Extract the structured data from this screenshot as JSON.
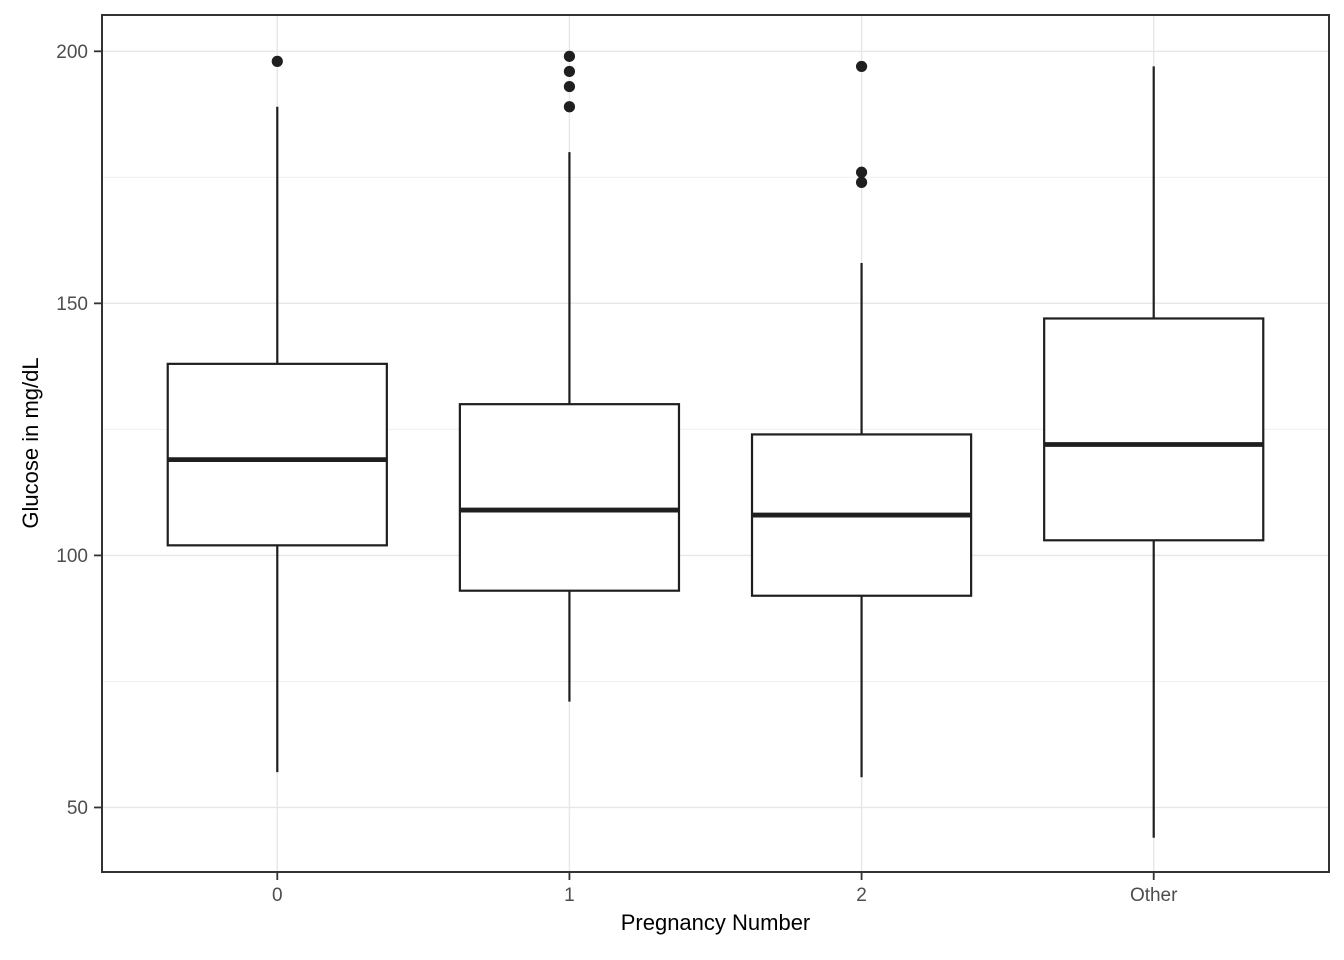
{
  "chart_data": {
    "type": "boxplot",
    "title": "",
    "xlabel": "Pregnancy Number",
    "ylabel": "Glucose in mg/dL",
    "categories": [
      "0",
      "1",
      "2",
      "Other"
    ],
    "series": [
      {
        "category": "0",
        "whisker_low": 57,
        "q1": 102,
        "median": 119,
        "q3": 138,
        "whisker_high": 189,
        "outliers": [
          198
        ]
      },
      {
        "category": "1",
        "whisker_low": 71,
        "q1": 93,
        "median": 109,
        "q3": 130,
        "whisker_high": 180,
        "outliers": [
          189,
          193,
          196,
          199
        ]
      },
      {
        "category": "2",
        "whisker_low": 56,
        "q1": 92,
        "median": 108,
        "q3": 124,
        "whisker_high": 158,
        "outliers": [
          174,
          176,
          197
        ]
      },
      {
        "category": "Other",
        "whisker_low": 44,
        "q1": 103,
        "median": 122,
        "q3": 147,
        "whisker_high": 197,
        "outliers": []
      }
    ],
    "y_axis": {
      "ticks": [
        50,
        100,
        150,
        200
      ],
      "minor_ticks": [
        75,
        125,
        175
      ],
      "ylim": [
        37.2,
        207.2
      ]
    },
    "grid": "on",
    "legend": "none",
    "colors": {
      "background": "#ffffff",
      "panel_border": "#333333",
      "grid_major": "#e7e7e7",
      "grid_minor": "#f0f0f0",
      "box_stroke": "#1f1f1f",
      "box_fill": "#ffffff",
      "outlier": "#1f1f1f",
      "tick_mark": "#333333",
      "tick_label": "#4d4d4d",
      "axis_title": "#000000"
    }
  }
}
